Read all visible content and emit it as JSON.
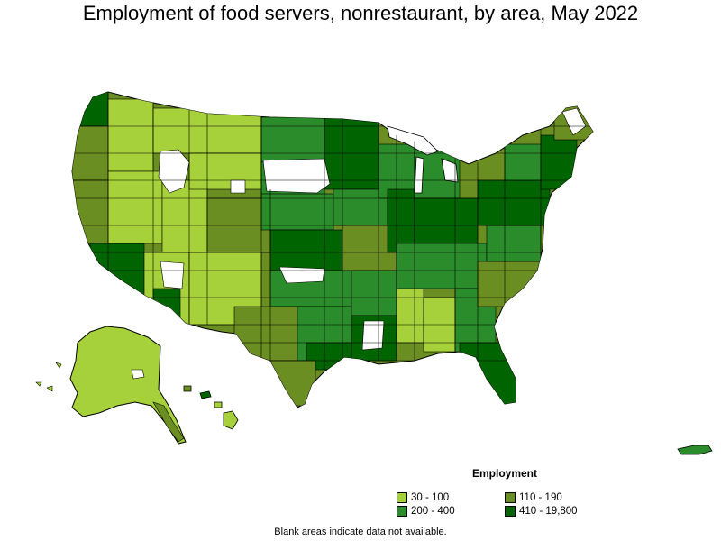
{
  "title": "Employment of food servers, nonrestaurant, by area, May 2022",
  "legend": {
    "title": "Employment",
    "items": [
      {
        "label": "30 - 100",
        "color": "#a6d13a"
      },
      {
        "label": "110 - 190",
        "color": "#6b8e23"
      },
      {
        "label": "200 - 400",
        "color": "#2a8c2a"
      },
      {
        "label": "410 - 19,800",
        "color": "#006400"
      }
    ]
  },
  "footnote": "Blank areas indicate data not available.",
  "colors": {
    "c1": "#a6d13a",
    "c2": "#6b8e23",
    "c3": "#2a8c2a",
    "c4": "#006400",
    "blank": "#ffffff",
    "border": "#000000"
  }
}
